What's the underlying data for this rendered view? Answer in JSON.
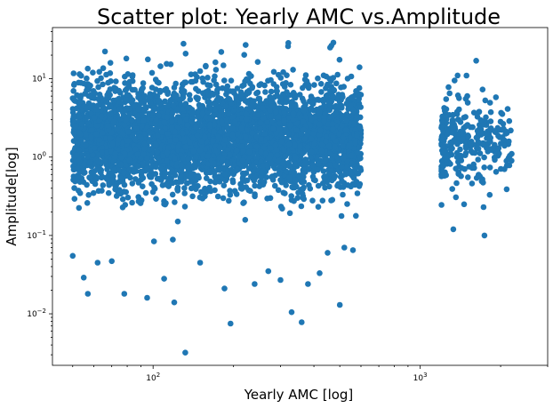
{
  "chart_data": {
    "type": "scatter",
    "title": "Scatter plot: Yearly AMC vs.Amplitude",
    "xlabel": "Yearly AMC [log]",
    "ylabel": "Amplitude[log]",
    "xscale": "log",
    "yscale": "log",
    "xlim": [
      42,
      3000
    ],
    "ylim": [
      0.0022,
      45
    ],
    "grid": false,
    "legend": "none",
    "marker_color": "#1f77b4",
    "x_ticks": [
      {
        "value": 100,
        "base": "10",
        "exp": "2"
      },
      {
        "value": 1000,
        "base": "10",
        "exp": "3"
      }
    ],
    "y_ticks": [
      {
        "value": 0.01,
        "base": "10",
        "exp": "−2"
      },
      {
        "value": 0.1,
        "base": "10",
        "exp": "−1"
      },
      {
        "value": 1,
        "base": "10",
        "exp": "0"
      },
      {
        "value": 10,
        "base": "10",
        "exp": "1"
      }
    ],
    "clusters": [
      {
        "name": "",
        "x_range": [
          50,
          600
        ],
        "y_median": 1.8,
        "count": 4200
      },
      {
        "name": "",
        "x_range": [
          1200,
          2200
        ],
        "y_median": 1.5,
        "count": 280
      }
    ],
    "outliers": [
      [
        132,
        0.0032
      ],
      [
        195,
        0.0075
      ],
      [
        360,
        0.0078
      ],
      [
        330,
        0.0105
      ],
      [
        500,
        0.013
      ],
      [
        185,
        0.021
      ],
      [
        78,
        0.018
      ],
      [
        57,
        0.018
      ],
      [
        95,
        0.016
      ],
      [
        120,
        0.014
      ],
      [
        50,
        0.055
      ],
      [
        55,
        0.029
      ],
      [
        62,
        0.045
      ],
      [
        70,
        0.047
      ],
      [
        110,
        0.028
      ],
      [
        150,
        0.045
      ],
      [
        240,
        0.024
      ],
      [
        270,
        0.035
      ],
      [
        300,
        0.027
      ],
      [
        380,
        0.024
      ],
      [
        420,
        0.033
      ],
      [
        450,
        0.06
      ],
      [
        520,
        0.07
      ],
      [
        560,
        0.065
      ],
      [
        130,
        28
      ],
      [
        222,
        27
      ],
      [
        320,
        26
      ],
      [
        460,
        25
      ],
      [
        180,
        22
      ],
      [
        1620,
        17
      ],
      [
        1380,
        11
      ],
      [
        1920,
        5.8
      ],
      [
        1330,
        0.12
      ],
      [
        1740,
        0.1
      ],
      [
        1460,
        0.25
      ],
      [
        2200,
        1.1
      ],
      [
        2050,
        2.3
      ],
      [
        1250,
        5.5
      ],
      [
        1500,
        6.0
      ],
      [
        1820,
        0.33
      ]
    ]
  }
}
